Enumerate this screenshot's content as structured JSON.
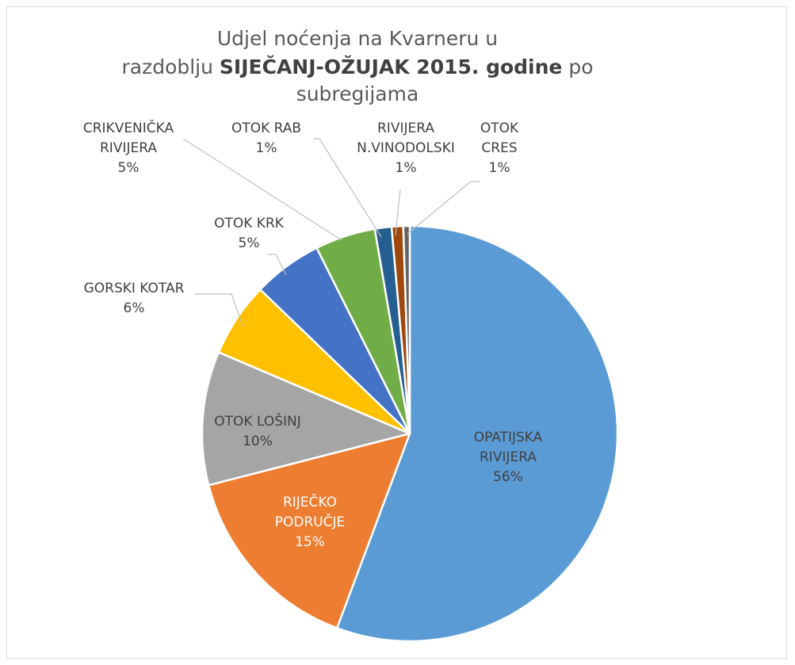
{
  "chart_data": {
    "type": "pie",
    "title": {
      "line1": "Udjel noćenja na Kvarneru u",
      "line2_pre": "razdoblju ",
      "line2_bold": "SIJEČANJ-OŽUJAK 2015. godine",
      "line2_post": " po",
      "line3": "subregijama"
    },
    "slices": [
      {
        "name": "OPATIJSKA RIVIJERA",
        "label_lines": [
          "OPATIJSKA",
          "RIVIJERA"
        ],
        "value": 55.7,
        "label": "56%",
        "color": "#5b9bd5",
        "label_color": "#404040"
      },
      {
        "name": "RIJEČKO PODRUČJE",
        "label_lines": [
          "RIJEČKO",
          "PODRUČJE"
        ],
        "value": 15.3,
        "label": "15%",
        "color": "#ed7d31",
        "label_color": "#ffffff"
      },
      {
        "name": "OTOK LOŠINJ",
        "label_lines": [
          "OTOK LOŠINJ"
        ],
        "value": 10.4,
        "label": "10%",
        "color": "#a5a5a5",
        "label_color": "#404040"
      },
      {
        "name": "GORSKI KOTAR",
        "label_lines": [
          "GORSKI KOTAR"
        ],
        "value": 5.8,
        "label": "6%",
        "color": "#ffc000",
        "label_color": "#404040"
      },
      {
        "name": "OTOK KRK",
        "label_lines": [
          "OTOK KRK"
        ],
        "value": 5.4,
        "label": "5%",
        "color": "#4472c4",
        "label_color": "#404040"
      },
      {
        "name": "CRIKVENIČKA RIVIJERA",
        "label_lines": [
          "CRIKVENIČKA",
          "RIVIJERA"
        ],
        "value": 4.7,
        "label": "5%",
        "color": "#70ad47",
        "label_color": "#404040"
      },
      {
        "name": "OTOK RAB",
        "label_lines": [
          "OTOK RAB"
        ],
        "value": 1.3,
        "label": "1%",
        "color": "#255e91",
        "label_color": "#404040"
      },
      {
        "name": "RIVIJERA N.VINODOLSKI",
        "label_lines": [
          "RIVIJERA",
          "N.VINODOLSKI"
        ],
        "value": 0.9,
        "label": "1%",
        "color": "#9e480e",
        "label_color": "#404040"
      },
      {
        "name": "OTOK CRES",
        "label_lines": [
          "OTOK",
          "CRES"
        ],
        "value": 0.5,
        "label": "1%",
        "color": "#636363",
        "label_color": "#404040"
      }
    ],
    "start_angle": "12 o'clock",
    "direction": "clockwise",
    "legend": "none"
  }
}
